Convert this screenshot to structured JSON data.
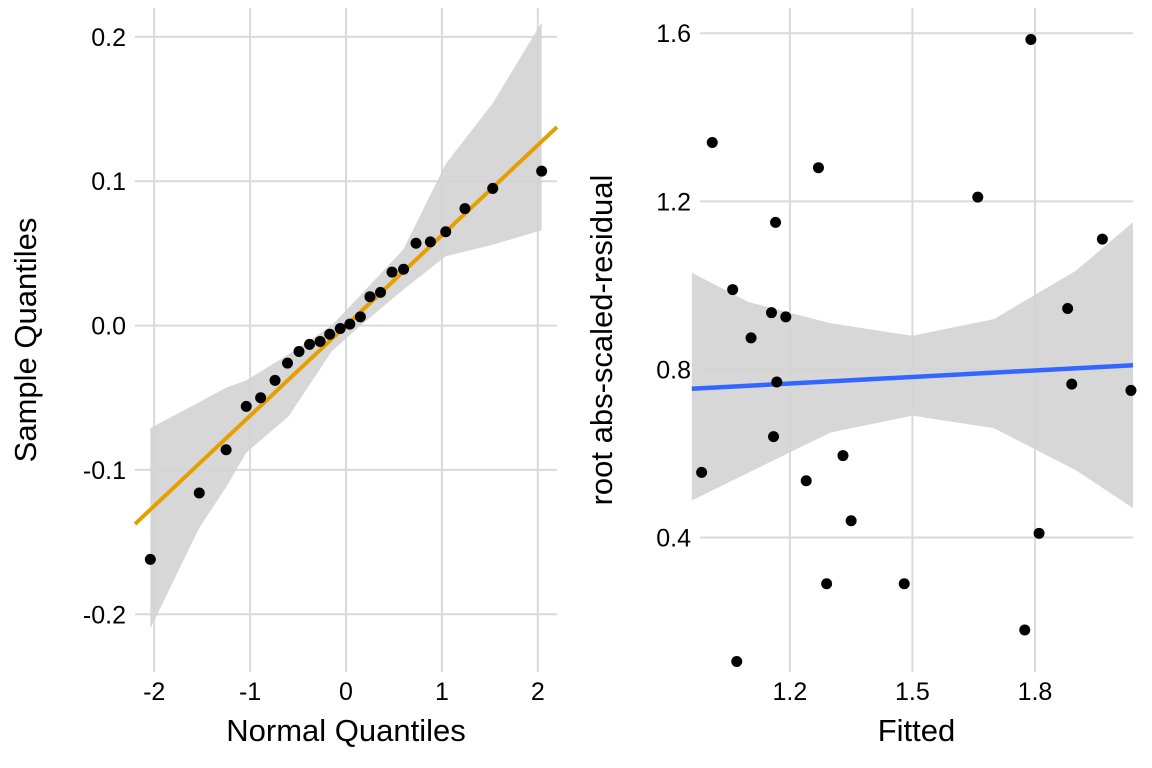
{
  "chart_data": [
    {
      "type": "scatter",
      "title": "",
      "xlabel": "Normal Quantiles",
      "ylabel": "Sample Quantiles",
      "xlim": [
        -2.2,
        2.2
      ],
      "ylim": [
        -0.24,
        0.22
      ],
      "x_ticks": [
        -2,
        -1,
        0,
        1,
        2
      ],
      "x_tick_labels": [
        "-2",
        "-1",
        "0",
        "1",
        "2"
      ],
      "y_ticks": [
        -0.2,
        -0.1,
        0.0,
        0.1,
        0.2
      ],
      "y_tick_labels": [
        "-0.2",
        "-0.1",
        "0.0",
        "0.1",
        "0.2"
      ],
      "grid": true,
      "legend": "none",
      "points": {
        "x": [
          -2.04,
          -1.53,
          -1.25,
          -1.04,
          -0.89,
          -0.74,
          -0.61,
          -0.49,
          -0.38,
          -0.27,
          -0.17,
          -0.06,
          0.04,
          0.15,
          0.25,
          0.36,
          0.48,
          0.6,
          0.73,
          0.88,
          1.04,
          1.24,
          1.53,
          2.04
        ],
        "y": [
          -0.162,
          -0.116,
          -0.086,
          -0.056,
          -0.05,
          -0.038,
          -0.026,
          -0.018,
          -0.013,
          -0.011,
          -0.006,
          -0.002,
          0.001,
          0.006,
          0.02,
          0.023,
          0.037,
          0.039,
          0.057,
          0.058,
          0.065,
          0.081,
          0.095,
          0.107
        ],
        "color": "#000000"
      },
      "reference_line": {
        "slope": 0.0625,
        "intercept": 0.0,
        "color": "#E69F00"
      },
      "confidence_band": {
        "x": [
          -2.04,
          -1.53,
          -1.25,
          -1.04,
          -0.6,
          -0.15,
          0.15,
          0.6,
          1.04,
          1.53,
          2.04
        ],
        "lower": [
          -0.21,
          -0.14,
          -0.112,
          -0.088,
          -0.063,
          -0.018,
          0.0,
          0.025,
          0.048,
          0.056,
          0.066
        ],
        "upper": [
          -0.071,
          -0.053,
          -0.043,
          -0.038,
          -0.02,
          0.0,
          0.021,
          0.053,
          0.112,
          0.154,
          0.21
        ],
        "color": "#d3d3d3"
      }
    },
    {
      "type": "scatter",
      "title": "",
      "xlabel": "Fitted",
      "ylabel": "root abs-scaled-residual",
      "xlim": [
        0.98,
        2.04
      ],
      "ylim": [
        0.08,
        1.66
      ],
      "x_ticks": [
        1.2,
        1.5,
        1.8
      ],
      "x_tick_labels": [
        "1.2",
        "1.5",
        "1.8"
      ],
      "y_ticks": [
        0.4,
        0.8,
        1.2,
        1.6
      ],
      "y_tick_labels": [
        "0.4",
        "0.8",
        "1.2",
        "1.6"
      ],
      "grid": true,
      "legend": "none",
      "points": {
        "x": [
          0.984,
          1.01,
          1.06,
          1.07,
          1.105,
          1.155,
          1.16,
          1.165,
          1.168,
          1.19,
          1.24,
          1.27,
          1.29,
          1.33,
          1.35,
          1.48,
          1.66,
          1.775,
          1.79,
          1.81,
          1.88,
          1.89,
          1.965,
          2.035
        ],
        "y": [
          0.555,
          1.34,
          0.99,
          0.105,
          0.875,
          0.935,
          0.64,
          1.15,
          0.77,
          0.925,
          0.535,
          1.28,
          0.29,
          0.595,
          0.44,
          0.29,
          1.21,
          0.18,
          1.585,
          0.41,
          0.945,
          0.765,
          1.11,
          0.75
        ],
        "color": "#000000"
      },
      "smooth_line": {
        "x": [
          0.96,
          2.04
        ],
        "y": [
          0.754,
          0.81
        ],
        "color": "#3366FF"
      },
      "confidence_band": {
        "x": [
          0.96,
          1.1,
          1.3,
          1.5,
          1.7,
          1.9,
          2.04
        ],
        "lower": [
          0.488,
          0.555,
          0.65,
          0.69,
          0.66,
          0.56,
          0.47
        ],
        "upper": [
          1.03,
          0.96,
          0.91,
          0.88,
          0.92,
          1.035,
          1.15
        ],
        "color": "#d3d3d3"
      }
    }
  ]
}
